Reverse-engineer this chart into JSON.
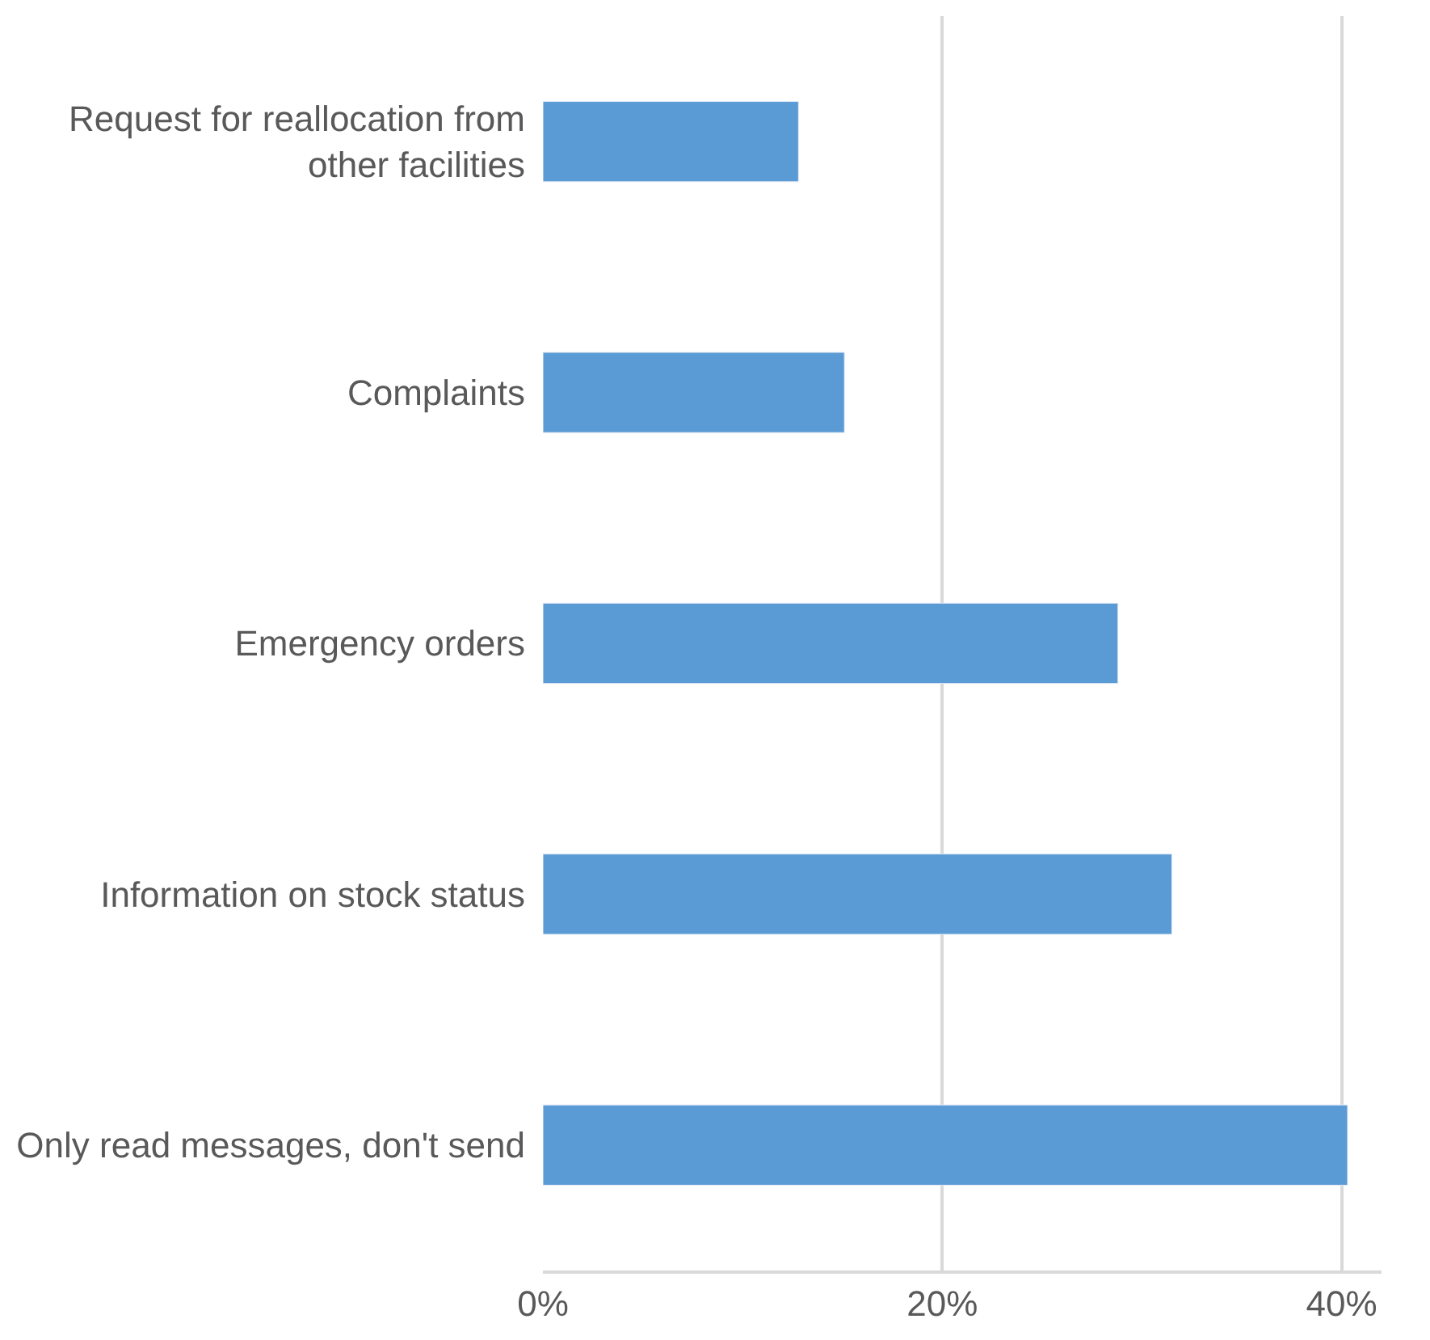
{
  "chart_data": {
    "type": "bar",
    "orientation": "horizontal",
    "categories": [
      "Request for reallocation from other facilities",
      "Complaints",
      "Emergency orders",
      "Information on stock status",
      "Only read messages, don't send"
    ],
    "values": [
      12.8,
      15.1,
      28.8,
      31.5,
      40.3
    ],
    "color": "#5b9bd5",
    "xlim": [
      0,
      42
    ],
    "xticks": [
      {
        "value": 0,
        "label": "0%"
      },
      {
        "value": 20,
        "label": "20%"
      },
      {
        "value": 40,
        "label": "40%"
      }
    ],
    "grid": "x"
  }
}
